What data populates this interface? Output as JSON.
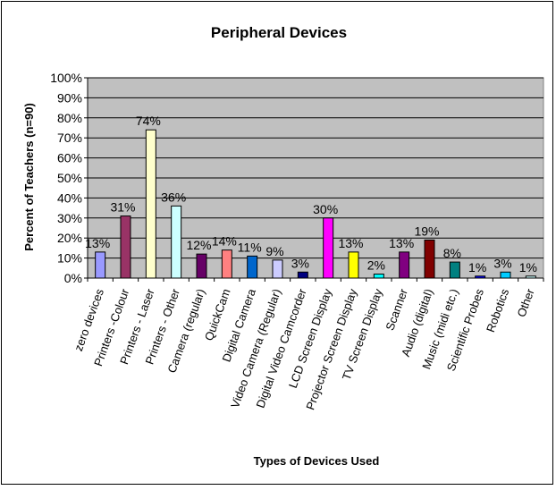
{
  "chart_data": {
    "type": "bar",
    "title": "Peripheral Devices",
    "xlabel": "Types of Devices Used",
    "ylabel": "Percent of Teachers (n=90)",
    "ylim": [
      0,
      100
    ],
    "yticks": [
      "0%",
      "10%",
      "20%",
      "30%",
      "40%",
      "50%",
      "60%",
      "70%",
      "80%",
      "90%",
      "100%"
    ],
    "grid": true,
    "legend": "none",
    "plot_background": "#c0c0c0",
    "categories": [
      "zero devices",
      "Printers -Colour",
      "Printers - Laser",
      "Printers - Other",
      "Camera (regular)",
      "QuickCam",
      "Digital Camera",
      "Video Camera (Regular)",
      "Digital Video Camcorder",
      "LCD Screen Display",
      "Projector Screen Display",
      "TV Screen Display",
      "Scanner",
      "Audio (digital)",
      "Music (midi etc.)",
      "Scientific Probes",
      "Robotics",
      "Other"
    ],
    "values": [
      13,
      31,
      74,
      36,
      12,
      14,
      11,
      9,
      3,
      30,
      13,
      2,
      13,
      19,
      8,
      1,
      3,
      1
    ],
    "data_labels": [
      "13%",
      "31%",
      "74%",
      "36%",
      "12%",
      "14%",
      "11%",
      "9%",
      "3%",
      "30%",
      "13%",
      "2%",
      "13%",
      "19%",
      "8%",
      "1%",
      "3%",
      "1%"
    ],
    "colors": [
      "#9999ff",
      "#993366",
      "#ffffcc",
      "#ccffff",
      "#660066",
      "#ff8080",
      "#0066cc",
      "#ccccff",
      "#000080",
      "#ff00ff",
      "#ffff00",
      "#00ffff",
      "#800080",
      "#800000",
      "#008080",
      "#0000ff",
      "#00ccff",
      "#ccffff"
    ]
  }
}
